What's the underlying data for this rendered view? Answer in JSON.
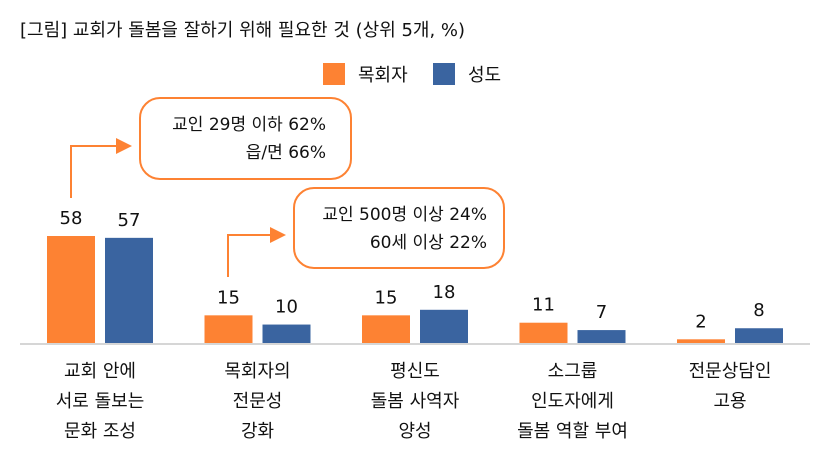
{
  "chart_data": {
    "type": "bar",
    "title": "[그림] 교회가 돌봄을 잘하기 위해 필요한 것 (상위 5개, %)",
    "xlabel": "",
    "ylabel": "",
    "ylim": [
      0,
      60
    ],
    "grid": false,
    "legend_position": "top-right",
    "categories": [
      [
        "교회 안에",
        "서로 돌보는",
        "문화 조성"
      ],
      [
        "목회자의",
        "전문성",
        "강화"
      ],
      [
        "평신도",
        "돌봄 사역자",
        "양성"
      ],
      [
        "소그룹",
        "인도자에게",
        "돌봄 역할 부여"
      ],
      [
        "전문상담인",
        "고용"
      ]
    ],
    "series": [
      {
        "name": "목회자",
        "color": "#FD8233",
        "values": [
          58,
          15,
          15,
          11,
          2
        ]
      },
      {
        "name": "성도",
        "color": "#3A64A0",
        "values": [
          57,
          10,
          18,
          7,
          8
        ]
      }
    ],
    "annotations": [
      {
        "lines": [
          "교인 29명 이하 62%",
          "읍/면 66%"
        ],
        "category_index": 0,
        "series_index": 0
      },
      {
        "lines": [
          "교인 500명 이상 24%",
          "60세 이상 22%"
        ],
        "category_index": 1,
        "series_index": 0
      }
    ]
  }
}
